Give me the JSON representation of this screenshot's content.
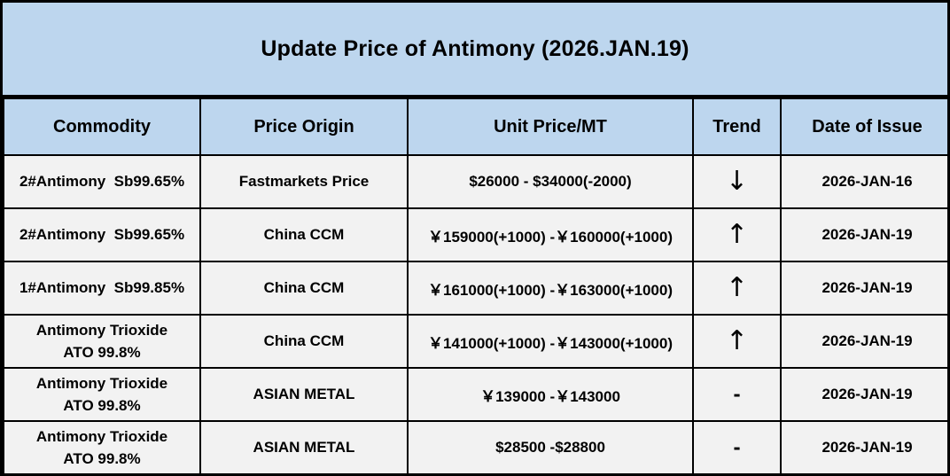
{
  "title": "Update Price of Antimony (2026.JAN.19)",
  "table": {
    "columns": [
      {
        "key": "commodity",
        "label": "Commodity"
      },
      {
        "key": "origin",
        "label": "Price Origin"
      },
      {
        "key": "price",
        "label": "Unit Price/MT"
      },
      {
        "key": "trend",
        "label": "Trend"
      },
      {
        "key": "date",
        "label": "Date of Issue"
      }
    ],
    "rows": [
      {
        "commodity": "2#Antimony  Sb99.65%",
        "origin": "Fastmarkets Price",
        "price": "$26000 - $34000(-2000)",
        "trend": "↓",
        "trend_type": "down",
        "date": "2026-JAN-16"
      },
      {
        "commodity": "2#Antimony  Sb99.65%",
        "origin": "China CCM",
        "price": "￥159000(+1000) -￥160000(+1000)",
        "trend": "↑",
        "trend_type": "up",
        "date": "2026-JAN-19"
      },
      {
        "commodity": "1#Antimony  Sb99.85%",
        "origin": "China CCM",
        "price": "￥161000(+1000) -￥163000(+1000)",
        "trend": "↑",
        "trend_type": "up",
        "date": "2026-JAN-19"
      },
      {
        "commodity": "Antimony Trioxide\nATO 99.8%",
        "origin": "China CCM",
        "price": "￥141000(+1000) -￥143000(+1000)",
        "trend": "↑",
        "trend_type": "up",
        "date": "2026-JAN-19"
      },
      {
        "commodity": "Antimony Trioxide\nATO 99.8%",
        "origin": "ASIAN METAL",
        "price": "￥139000 -￥143000",
        "trend": "-",
        "trend_type": "flat",
        "date": "2026-JAN-19"
      },
      {
        "commodity": "Antimony Trioxide\nATO 99.8%",
        "origin": "ASIAN METAL",
        "price": "$28500 -$28800",
        "trend": "-",
        "trend_type": "flat",
        "date": "2026-JAN-19"
      }
    ]
  },
  "colors": {
    "header_bg": "#bdd6ee",
    "row_bg": "#f2f2f2",
    "border": "#000000",
    "text": "#000000"
  }
}
